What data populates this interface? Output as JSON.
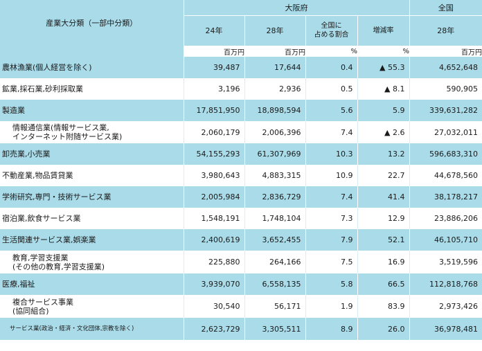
{
  "header": {
    "category": "産業大分類（一部中分類）",
    "osaka": "大阪府",
    "national": "全国",
    "y24": "24年",
    "y28": "28年",
    "share_line1": "全国に",
    "share_line2": "占める割合",
    "growth": "増減率",
    "national_y28": "28年"
  },
  "units": [
    "百万円",
    "百万円",
    "%",
    "%",
    "百万円"
  ],
  "rows": [
    {
      "label": [
        "農林漁業(個人経営を除く)"
      ],
      "v24": "39,487",
      "v28": "17,644",
      "share": "0.4",
      "growth": "▲ 55.3",
      "national": "4,652,648",
      "shade": true,
      "style": ""
    },
    {
      "label": [
        "鉱業,採石業,砂利採取業"
      ],
      "v24": "3,196",
      "v28": "2,936",
      "share": "0.5",
      "growth": "▲ 8.1",
      "national": "590,905",
      "shade": false,
      "style": ""
    },
    {
      "label": [
        "製造業"
      ],
      "v24": "17,851,950",
      "v28": "18,898,594",
      "share": "5.6",
      "growth": "5.9",
      "national": "339,631,282",
      "shade": true,
      "style": ""
    },
    {
      "label": [
        "情報通信業(情報サービス業,",
        "インターネット附随サービス業)"
      ],
      "v24": "2,060,179",
      "v28": "2,006,396",
      "share": "7.4",
      "growth": "▲ 2.6",
      "national": "27,032,011",
      "shade": false,
      "style": "sub"
    },
    {
      "label": [
        "卸売業,小売業"
      ],
      "v24": "54,155,293",
      "v28": "61,307,969",
      "share": "10.3",
      "growth": "13.2",
      "national": "596,683,310",
      "shade": true,
      "style": ""
    },
    {
      "label": [
        "不動産業,物品賃貸業"
      ],
      "v24": "3,980,643",
      "v28": "4,883,315",
      "share": "10.9",
      "growth": "22.7",
      "national": "44,678,560",
      "shade": false,
      "style": ""
    },
    {
      "label": [
        "学術研究,専門・技術サービス業"
      ],
      "v24": "2,005,984",
      "v28": "2,836,729",
      "share": "7.4",
      "growth": "41.4",
      "national": "38,178,217",
      "shade": true,
      "style": ""
    },
    {
      "label": [
        "宿泊業,飲食サービス業"
      ],
      "v24": "1,548,191",
      "v28": "1,748,104",
      "share": "7.3",
      "growth": "12.9",
      "national": "23,886,206",
      "shade": false,
      "style": ""
    },
    {
      "label": [
        "生活関連サービス業,娯楽業"
      ],
      "v24": "2,400,619",
      "v28": "3,652,455",
      "share": "7.9",
      "growth": "52.1",
      "national": "46,105,710",
      "shade": true,
      "style": ""
    },
    {
      "label": [
        "教育,学習支援業",
        "(その他の教育,学習支援業)"
      ],
      "v24": "225,880",
      "v28": "264,166",
      "share": "7.5",
      "growth": "16.9",
      "national": "3,519,596",
      "shade": false,
      "style": "sub"
    },
    {
      "label": [
        "医療,福祉"
      ],
      "v24": "3,939,070",
      "v28": "6,558,135",
      "share": "5.8",
      "growth": "66.5",
      "national": "112,818,768",
      "shade": true,
      "style": ""
    },
    {
      "label": [
        "複合サービス事業",
        "(協同組合)"
      ],
      "v24": "30,540",
      "v28": "56,171",
      "share": "1.9",
      "growth": "83.9",
      "national": "2,973,426",
      "shade": false,
      "style": "sub"
    },
    {
      "label": [
        "サービス業(政治・経済・文化団体,宗教を除く)"
      ],
      "v24": "2,623,729",
      "v28": "3,305,511",
      "share": "8.9",
      "growth": "26.0",
      "national": "36,978,481",
      "shade": true,
      "style": "small"
    }
  ]
}
